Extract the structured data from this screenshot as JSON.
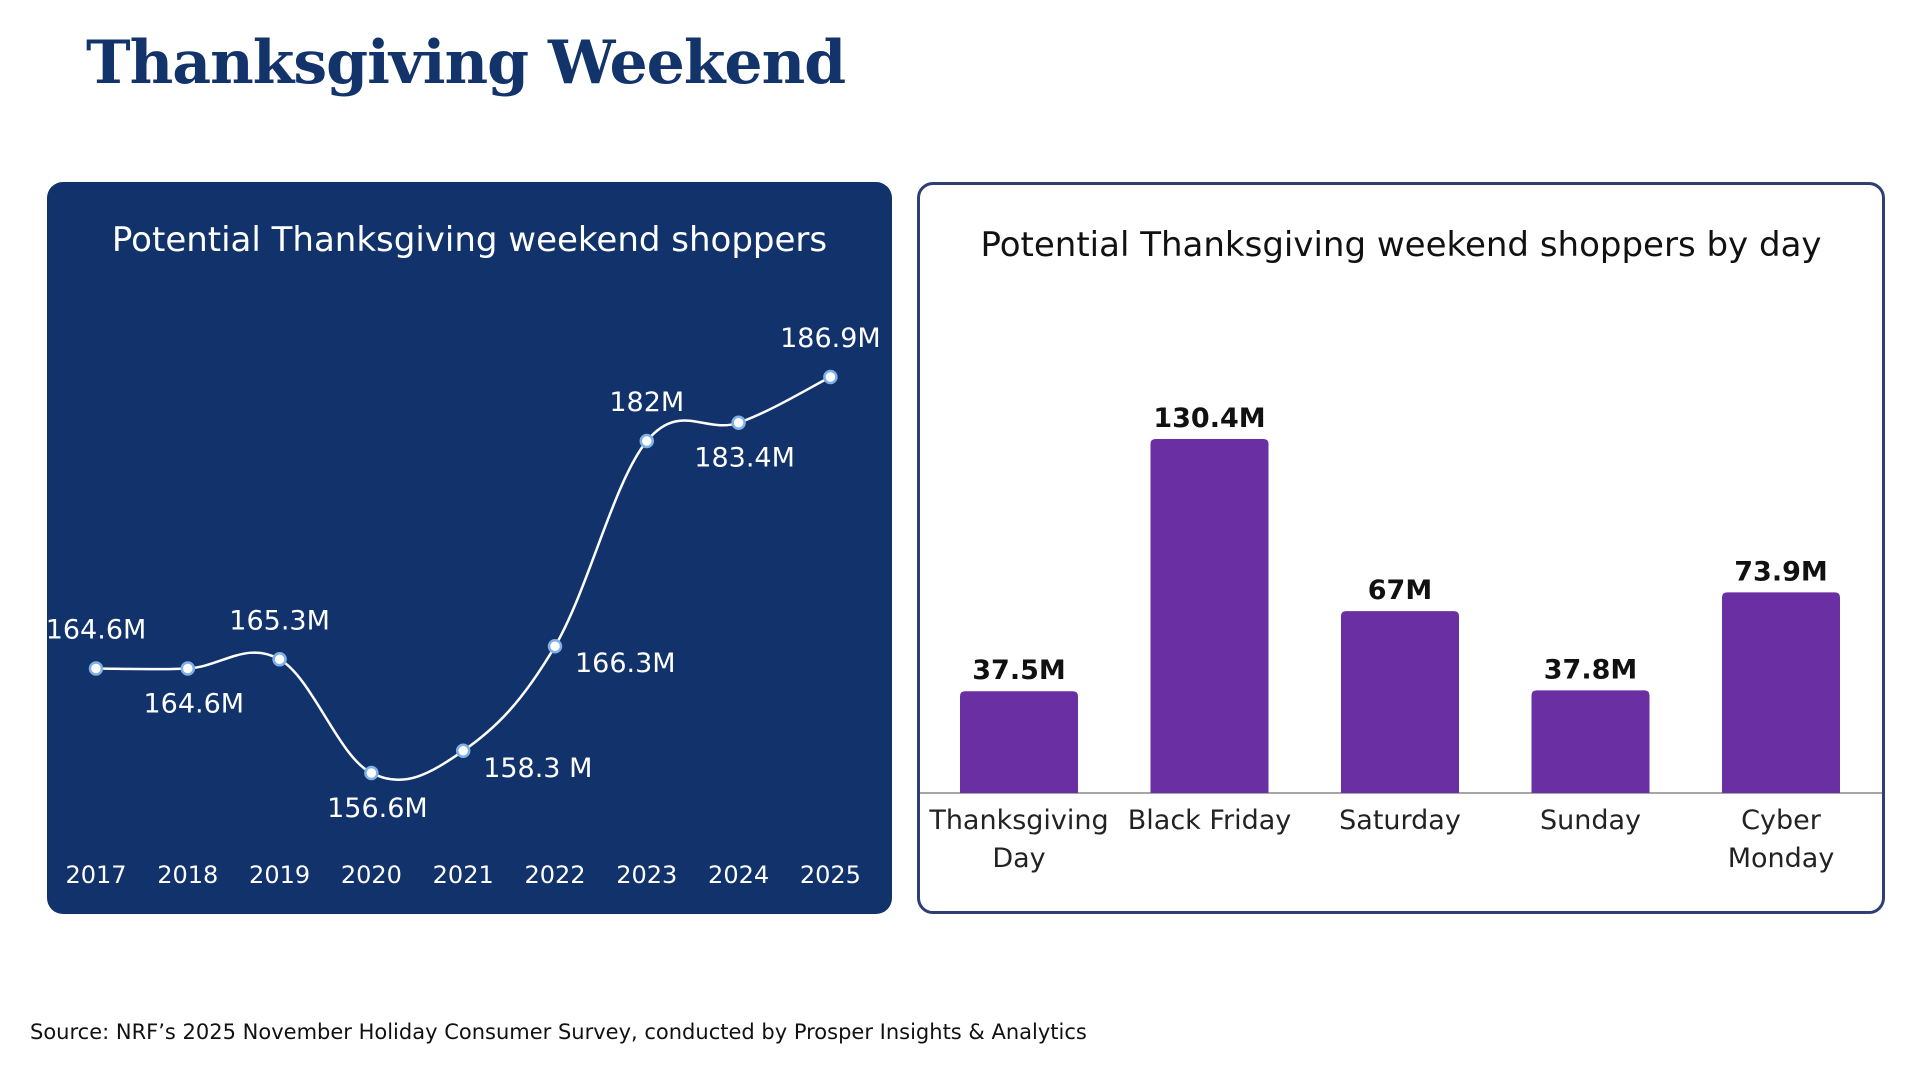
{
  "page": {
    "title": "Thanksgiving Weekend",
    "source": "Source: NRF’s 2025 November Holiday Consumer Survey, conducted by Prosper Insights & Analytics"
  },
  "colors": {
    "navy": "#11326b",
    "title_navy": "#12346b",
    "purple": "#6a2fa2",
    "white": "#ffffff",
    "dark_text": "#111111"
  },
  "chart_data": [
    {
      "type": "line",
      "title": "Potential Thanksgiving weekend shoppers",
      "x": [
        "2017",
        "2018",
        "2019",
        "2020",
        "2021",
        "2022",
        "2023",
        "2024",
        "2025"
      ],
      "values": [
        164.6,
        164.6,
        165.3,
        156.6,
        158.3,
        166.3,
        182,
        183.4,
        186.9
      ],
      "labels": [
        "164.6M",
        "164.6M",
        "165.3M",
        "156.6M",
        "158.3 M",
        "166.3M",
        "182M",
        "183.4M",
        "186.9M"
      ],
      "label_side": [
        "above",
        "below",
        "above",
        "below",
        "right",
        "right",
        "above",
        "below",
        "above"
      ],
      "xlabel": "",
      "ylabel": "",
      "ylim": [
        150,
        190
      ],
      "grid": false,
      "legend": "none"
    },
    {
      "type": "bar",
      "title": "Potential Thanksgiving weekend shoppers by day",
      "categories": [
        "Thanksgiving Day",
        "Black Friday",
        "Saturday",
        "Sunday",
        "Cyber Monday"
      ],
      "category_lines": [
        [
          "Thanksgiving",
          "Day"
        ],
        [
          "Black Friday"
        ],
        [
          "Saturday"
        ],
        [
          "Sunday"
        ],
        [
          "Cyber",
          "Monday"
        ]
      ],
      "values": [
        37.5,
        130.4,
        67,
        37.8,
        73.9
      ],
      "labels": [
        "37.5M",
        "130.4M",
        "67M",
        "37.8M",
        "73.9M"
      ],
      "xlabel": "",
      "ylabel": "",
      "ylim": [
        0,
        130.4
      ],
      "grid": false,
      "legend": "none"
    }
  ]
}
